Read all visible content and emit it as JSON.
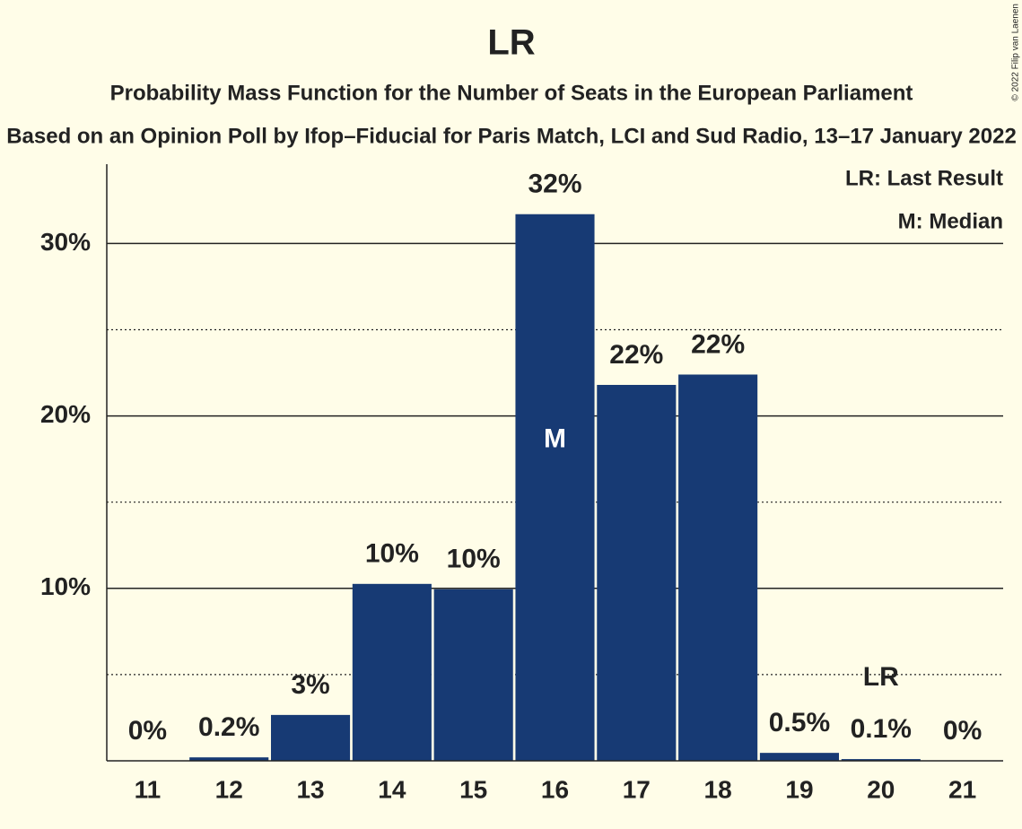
{
  "chart_data": {
    "type": "bar",
    "title": "LR",
    "subtitle": "Probability Mass Function for the Number of Seats in the European Parliament",
    "subtitle2": "Based on an Opinion Poll by Ifop–Fiducial for Paris Match, LCI and Sud Radio, 13–17 January 2022",
    "copyright": "© 2022 Filip van Laenen",
    "categories": [
      "11",
      "12",
      "13",
      "14",
      "15",
      "16",
      "17",
      "18",
      "19",
      "20",
      "21"
    ],
    "values": [
      0,
      0.2,
      2.66,
      10.26,
      9.95,
      31.7,
      21.8,
      22.4,
      0.46,
      0.1,
      0
    ],
    "value_labels": [
      "0%",
      "0.2%",
      "3%",
      "10%",
      "10%",
      "32%",
      "22%",
      "22%",
      "0.5%",
      "0.1%",
      "0%"
    ],
    "color": "#173a74",
    "ylim": [
      0,
      34.6
    ],
    "yticks": [
      {
        "value": 10,
        "label": "10%"
      },
      {
        "value": 20,
        "label": "20%"
      },
      {
        "value": 30,
        "label": "30%"
      }
    ],
    "minor_yticks": [
      5,
      15,
      25
    ],
    "grid": true,
    "legend": [
      "LR: Last Result",
      "M: Median"
    ],
    "annotations": [
      {
        "text": "M",
        "category": "16"
      },
      {
        "text": "LR",
        "category": "20"
      }
    ]
  }
}
